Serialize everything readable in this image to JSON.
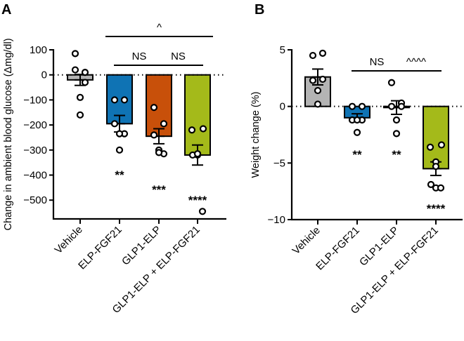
{
  "chart_data": [
    {
      "type": "bar",
      "panel": "A",
      "title": "",
      "xlabel": "",
      "ylabel": "Change in ambient blood glucose (Δmg/dl)",
      "ylim": [
        -575,
        100
      ],
      "yticks": [
        100,
        0,
        -100,
        -200,
        -300,
        -400,
        -500
      ],
      "ytick_labels": [
        "100",
        "0",
        "−100",
        "−200",
        "−300",
        "−400",
        "−500"
      ],
      "reference_line": 0,
      "categories": [
        "Vehicle",
        "ELP-FGF21",
        "GLP1-ELP",
        "GLP1-ELP + ELP-FGF21"
      ],
      "colors": [
        "#b4b4b4",
        "#0f73b4",
        "#c8500a",
        "#a4ba1a"
      ],
      "values": [
        -20,
        -195,
        -245,
        -320
      ],
      "sem": [
        22,
        33,
        30,
        40
      ],
      "points": [
        [
          85,
          10,
          20,
          -30,
          -90,
          -160
        ],
        [
          -100,
          -100,
          -195,
          -235,
          -235,
          -300
        ],
        [
          -130,
          -195,
          -240,
          -315,
          -300,
          -310
        ],
        [
          -220,
          -215,
          -320,
          -315,
          -320,
          -315,
          -545
        ]
      ],
      "stars": [
        "",
        "**",
        "***",
        "****"
      ],
      "comparisons": [
        {
          "from": 1,
          "to": 2,
          "label": "NS",
          "level": 1
        },
        {
          "from": 2,
          "to": 3,
          "label": "NS",
          "level": 1
        },
        {
          "from": 1,
          "to": 3,
          "label": "^",
          "level": 2
        }
      ]
    },
    {
      "type": "bar",
      "panel": "B",
      "title": "",
      "xlabel": "",
      "ylabel": "Weight change (%)",
      "ylim": [
        -10,
        5
      ],
      "yticks": [
        5,
        0,
        -5,
        -10
      ],
      "ytick_labels": [
        "5",
        "0",
        "−5",
        "−10"
      ],
      "reference_line": 0,
      "categories": [
        "Vehicle",
        "ELP-FGF21",
        "GLP1-ELP",
        "GLP1-ELP + ELP-FGF21"
      ],
      "colors": [
        "#b4b4b4",
        "#0f73b4",
        "#c8500a",
        "#a4ba1a"
      ],
      "values": [
        2.6,
        -1.0,
        -0.1,
        -5.5
      ],
      "sem": [
        0.7,
        0.35,
        0.6,
        0.6
      ],
      "points": [
        [
          4.5,
          4.7,
          2.3,
          2.4,
          1.4,
          0.2
        ],
        [
          0,
          0,
          -1.2,
          -1.2,
          -1.2,
          -2.3
        ],
        [
          2.1,
          0.3,
          0,
          0,
          -1.2,
          -2.4
        ],
        [
          -3.6,
          -3.4,
          -4.9,
          -5.3,
          -6.9,
          -7.2,
          -7.2
        ]
      ],
      "stars": [
        "",
        "**",
        "**",
        "****"
      ],
      "comparisons": [
        {
          "from": 1,
          "to": 2,
          "label": "NS",
          "level": 1
        },
        {
          "from": 2,
          "to": 3,
          "label": "^^^^",
          "level": 1
        }
      ]
    }
  ],
  "panels": {
    "a_label": "A",
    "b_label": "B"
  }
}
